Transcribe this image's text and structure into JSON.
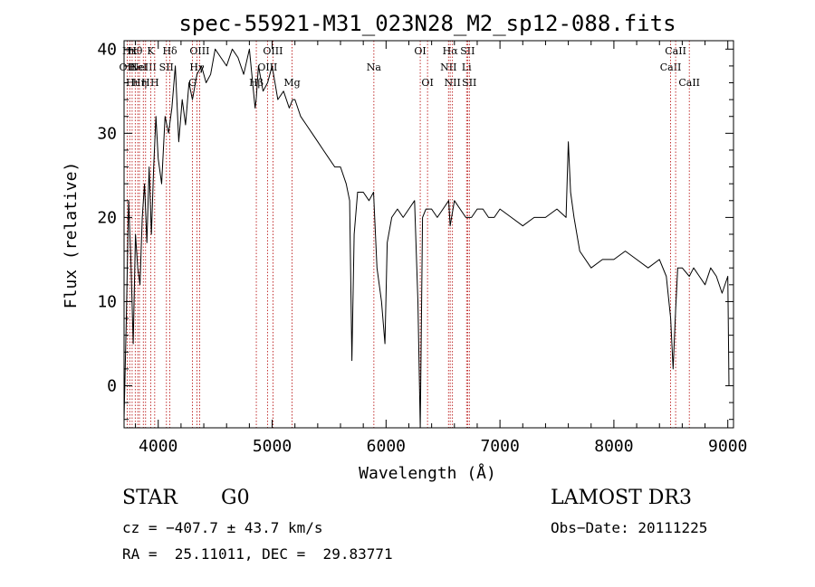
{
  "chart_data": {
    "type": "line",
    "title": "spec-55921-M31_023N28_M2_sp12-088.fits",
    "xlabel": "Wavelength (Å)",
    "ylabel": "Flux (relative)",
    "xlim": [
      3700,
      9050
    ],
    "ylim": [
      -5,
      41
    ],
    "x_ticks": [
      4000,
      5000,
      6000,
      7000,
      8000,
      9000
    ],
    "y_ticks": [
      0,
      10,
      20,
      30,
      40
    ],
    "series": [
      {
        "color": "#000000",
        "x": [
          3700,
          3720,
          3740,
          3760,
          3780,
          3800,
          3820,
          3840,
          3860,
          3880,
          3900,
          3920,
          3940,
          3960,
          3980,
          4000,
          4030,
          4060,
          4090,
          4120,
          4150,
          4180,
          4210,
          4240,
          4270,
          4300,
          4340,
          4380,
          4420,
          4460,
          4500,
          4550,
          4600,
          4650,
          4700,
          4750,
          4800,
          4850,
          4860,
          4880,
          4920,
          4960,
          5000,
          5050,
          5100,
          5150,
          5180,
          5200,
          5250,
          5300,
          5350,
          5400,
          5450,
          5500,
          5550,
          5600,
          5650,
          5680,
          5700,
          5720,
          5750,
          5800,
          5850,
          5890,
          5920,
          5960,
          5990,
          6010,
          6050,
          6100,
          6150,
          6200,
          6250,
          6280,
          6300,
          6320,
          6350,
          6400,
          6450,
          6500,
          6550,
          6563,
          6600,
          6650,
          6700,
          6750,
          6800,
          6850,
          6900,
          6950,
          7000,
          7100,
          7200,
          7300,
          7400,
          7500,
          7580,
          7600,
          7620,
          7650,
          7700,
          7800,
          7900,
          8000,
          8100,
          8200,
          8300,
          8400,
          8460,
          8498,
          8520,
          8542,
          8560,
          8600,
          8662,
          8700,
          8750,
          8800,
          8850,
          8900,
          8950,
          9000,
          9010
        ],
        "y": [
          -4,
          8,
          22,
          15,
          5,
          18,
          14,
          12,
          20,
          24,
          17,
          26,
          18,
          26,
          32,
          27,
          24,
          32,
          30,
          33,
          38,
          29,
          34,
          31,
          36,
          34,
          37,
          38,
          36,
          37,
          40,
          39,
          38,
          40,
          39,
          37,
          40,
          33,
          34,
          38,
          35,
          36,
          38,
          34,
          35,
          33,
          34,
          34,
          32,
          31,
          30,
          29,
          28,
          27,
          26,
          26,
          24,
          22,
          3,
          18,
          23,
          23,
          22,
          23,
          14,
          10,
          5,
          17,
          20,
          21,
          20,
          21,
          22,
          10,
          -5,
          20,
          21,
          21,
          20,
          21,
          22,
          19,
          22,
          21,
          20,
          20,
          21,
          21,
          20,
          20,
          21,
          20,
          19,
          20,
          20,
          21,
          20,
          29,
          23,
          20,
          16,
          14,
          15,
          15,
          16,
          15,
          14,
          15,
          13,
          8,
          2,
          9,
          14,
          14,
          13,
          14,
          13,
          12,
          14,
          13,
          11,
          13,
          0
        ]
      }
    ],
    "lines": [
      {
        "x": 3727,
        "label": "OII",
        "row": 2
      },
      {
        "x": 3750,
        "label": "Hκ",
        "row": 1
      },
      {
        "x": 3771,
        "label": "Hι",
        "row": 3
      },
      {
        "x": 3798,
        "label": "Hθ",
        "row": 1
      },
      {
        "x": 3820,
        "label": "HeI",
        "row": 2
      },
      {
        "x": 3835,
        "label": "Hη",
        "row": 3
      },
      {
        "x": 3869,
        "label": "NeIII",
        "row": 2
      },
      {
        "x": 3889,
        "label": "H",
        "row": 3
      },
      {
        "x": 3934,
        "label": "K",
        "row": 1
      },
      {
        "x": 3969,
        "label": "H",
        "row": 3
      },
      {
        "x": 4072,
        "label": "SII",
        "row": 2
      },
      {
        "x": 4102,
        "label": "Hδ",
        "row": 1
      },
      {
        "x": 4300,
        "label": "G",
        "row": 3
      },
      {
        "x": 4340,
        "label": "Hγ",
        "row": 2
      },
      {
        "x": 4363,
        "label": "OIII",
        "row": 1
      },
      {
        "x": 4861,
        "label": "Hβ",
        "row": 3
      },
      {
        "x": 4959,
        "label": "OIII",
        "row": 2
      },
      {
        "x": 5007,
        "label": "OIII",
        "row": 1
      },
      {
        "x": 5175,
        "label": "Mg",
        "row": 3
      },
      {
        "x": 5893,
        "label": "Na",
        "row": 2
      },
      {
        "x": 6300,
        "label": "OI",
        "row": 1
      },
      {
        "x": 6364,
        "label": "OI",
        "row": 3
      },
      {
        "x": 6548,
        "label": "NII",
        "row": 2
      },
      {
        "x": 6563,
        "label": "Hα",
        "row": 1
      },
      {
        "x": 6583,
        "label": "NII",
        "row": 3
      },
      {
        "x": 6707,
        "label": "Li",
        "row": 2
      },
      {
        "x": 6716,
        "label": "SII",
        "row": 1
      },
      {
        "x": 6731,
        "label": "SII",
        "row": 3
      },
      {
        "x": 8498,
        "label": "CaII",
        "row": 2
      },
      {
        "x": 8542,
        "label": "CaII",
        "row": 1
      },
      {
        "x": 8662,
        "label": "CaII",
        "row": 3
      }
    ]
  },
  "info": {
    "class": "STAR",
    "subclass": "G0",
    "survey": "LAMOST DR3",
    "cz": "cz = −407.7 ± 43.7 km/s",
    "obs_date": "Obs−Date: 20111225",
    "coords": "RA =  25.11011, DEC =  29.83771"
  }
}
